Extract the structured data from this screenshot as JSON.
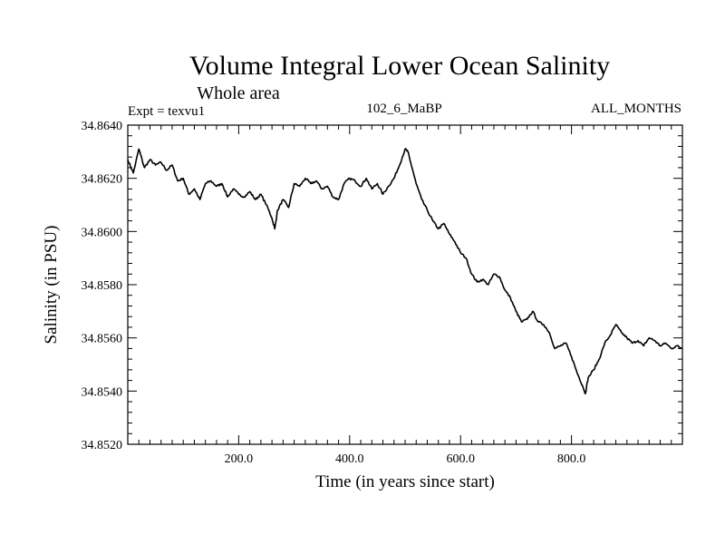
{
  "chart_data": {
    "type": "line",
    "title": "Volume Integral Lower Ocean Salinity",
    "subtitle": "Whole area",
    "header_left": "Expt = texvu1",
    "header_center": "102_6_MaBP",
    "header_right": "ALL_MONTHS",
    "xlabel": "Time (in years since start)",
    "ylabel": "Salinity (in PSU)",
    "xlim": [
      0,
      1000
    ],
    "ylim": [
      34.852,
      34.864
    ],
    "x_ticks": [
      200,
      400,
      600,
      800
    ],
    "x_tick_labels": [
      "200.0",
      "400.0",
      "600.0",
      "800.0"
    ],
    "y_ticks": [
      34.852,
      34.854,
      34.856,
      34.858,
      34.86,
      34.862,
      34.864
    ],
    "y_tick_labels": [
      "34.8520",
      "34.8540",
      "34.8560",
      "34.8580",
      "34.8600",
      "34.8620",
      "34.8640"
    ],
    "grid": false,
    "series": [
      {
        "name": "Salinity",
        "x": [
          0,
          10,
          20,
          30,
          40,
          50,
          60,
          70,
          80,
          90,
          100,
          110,
          120,
          130,
          140,
          150,
          160,
          170,
          180,
          190,
          200,
          210,
          220,
          230,
          240,
          250,
          260,
          265,
          270,
          280,
          290,
          300,
          310,
          320,
          330,
          340,
          350,
          360,
          370,
          380,
          390,
          400,
          410,
          420,
          430,
          440,
          450,
          460,
          470,
          480,
          490,
          500,
          505,
          510,
          520,
          530,
          540,
          550,
          560,
          570,
          580,
          590,
          600,
          610,
          620,
          630,
          640,
          650,
          660,
          670,
          680,
          690,
          700,
          710,
          720,
          730,
          740,
          750,
          760,
          770,
          780,
          790,
          800,
          810,
          820,
          825,
          830,
          840,
          850,
          860,
          870,
          880,
          890,
          900,
          910,
          920,
          930,
          940,
          950,
          960,
          970,
          980,
          990,
          1000
        ],
        "values": [
          34.8627,
          34.8622,
          34.8631,
          34.8624,
          34.8627,
          34.8625,
          34.8626,
          34.8623,
          34.8625,
          34.8619,
          34.862,
          34.8614,
          34.8616,
          34.8612,
          34.8618,
          34.8619,
          34.8617,
          34.8618,
          34.8613,
          34.8616,
          34.8614,
          34.8613,
          34.8615,
          34.8612,
          34.8614,
          34.861,
          34.8605,
          34.8601,
          34.8608,
          34.8612,
          34.8609,
          34.8618,
          34.8617,
          34.862,
          34.8618,
          34.8619,
          34.8616,
          34.8617,
          34.8613,
          34.8612,
          34.8618,
          34.862,
          34.8619,
          34.8617,
          34.862,
          34.8616,
          34.8618,
          34.8614,
          34.8617,
          34.862,
          34.8625,
          34.8631,
          34.863,
          34.8626,
          34.8618,
          34.8612,
          34.8608,
          34.8604,
          34.8601,
          34.8603,
          34.8599,
          34.8596,
          34.8592,
          34.859,
          34.8584,
          34.8581,
          34.8582,
          34.858,
          34.8584,
          34.8583,
          34.8578,
          34.8575,
          34.857,
          34.8566,
          34.8567,
          34.857,
          34.8566,
          34.8565,
          34.8562,
          34.8556,
          34.8557,
          34.8558,
          34.8553,
          34.8547,
          34.8542,
          34.8539,
          34.8545,
          34.8548,
          34.8552,
          34.8558,
          34.8561,
          34.8565,
          34.8562,
          34.856,
          34.8558,
          34.8559,
          34.8557,
          34.856,
          34.8559,
          34.8557,
          34.8558,
          34.8556,
          34.8557,
          34.8556
        ]
      }
    ]
  }
}
